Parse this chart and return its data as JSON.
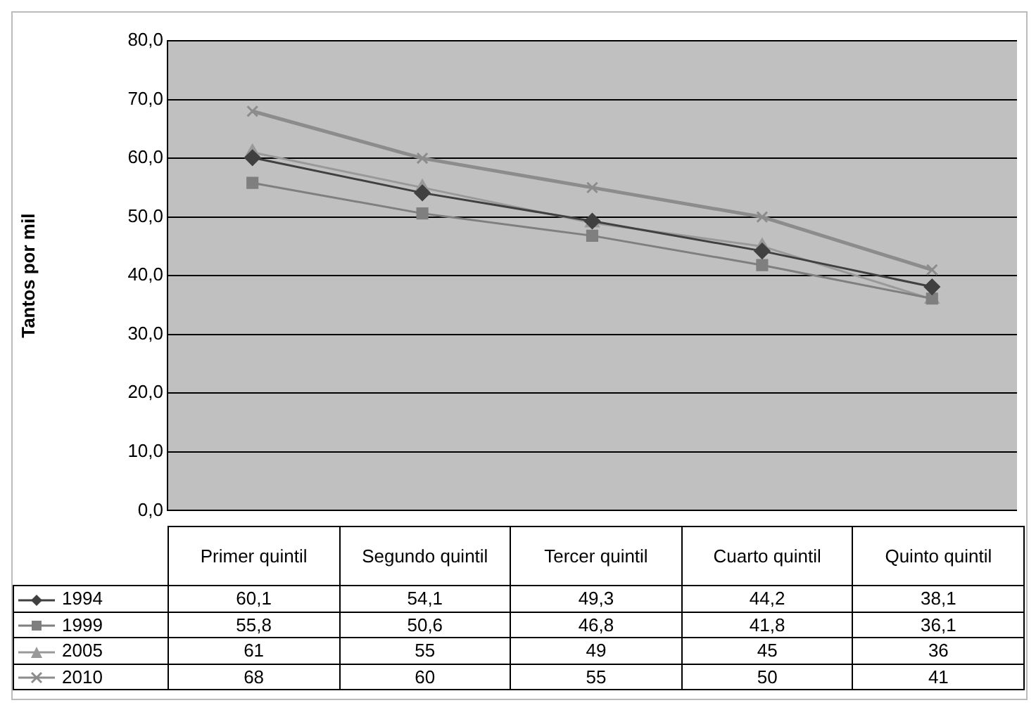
{
  "chart_data": {
    "type": "line",
    "ylabel": "Tantos por mil",
    "categories": [
      "Primer quintil",
      "Segundo quintil",
      "Tercer quintil",
      "Cuarto quintil",
      "Quinto quintil"
    ],
    "ylim": [
      0,
      80
    ],
    "yticks": [
      {
        "value": 0,
        "label": "0,0"
      },
      {
        "value": 10,
        "label": "10,0"
      },
      {
        "value": 20,
        "label": "20,0"
      },
      {
        "value": 30,
        "label": "30,0"
      },
      {
        "value": 40,
        "label": "40,0"
      },
      {
        "value": 50,
        "label": "50,0"
      },
      {
        "value": 60,
        "label": "60,0"
      },
      {
        "value": 70,
        "label": "70,0"
      },
      {
        "value": 80,
        "label": "80,0"
      }
    ],
    "grid": "y",
    "legend": "bottom",
    "line_style": "solid",
    "series": [
      {
        "name": "1994",
        "color": "#404040",
        "marker": "diamond",
        "values": [
          60.1,
          54.1,
          49.3,
          44.2,
          38.1
        ],
        "value_labels": [
          "60,1",
          "54,1",
          "49,3",
          "44,2",
          "38,1"
        ]
      },
      {
        "name": "1999",
        "color": "#7f7f7f",
        "marker": "square",
        "values": [
          55.8,
          50.6,
          46.8,
          41.8,
          36.1
        ],
        "value_labels": [
          "55,8",
          "50,6",
          "46,8",
          "41,8",
          "36,1"
        ]
      },
      {
        "name": "2005",
        "color": "#999999",
        "marker": "triangle",
        "values": [
          61,
          55,
          49,
          45,
          36
        ],
        "value_labels": [
          "61",
          "55",
          "49",
          "45",
          "36"
        ]
      },
      {
        "name": "2010",
        "color": "#8c8c8c",
        "marker": "cross",
        "values": [
          68,
          60,
          55,
          50,
          41
        ],
        "value_labels": [
          "68",
          "60",
          "55",
          "50",
          "41"
        ]
      }
    ]
  }
}
